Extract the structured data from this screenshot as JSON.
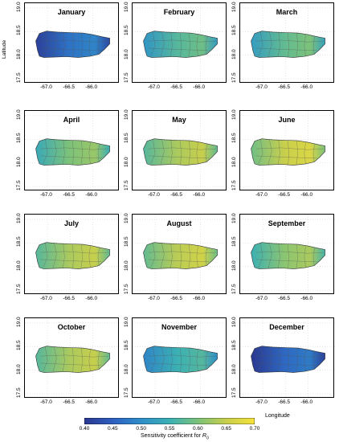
{
  "figure": {
    "months": [
      "January",
      "February",
      "March",
      "April",
      "May",
      "June",
      "July",
      "August",
      "September",
      "October",
      "November",
      "December"
    ],
    "month_means": [
      0.44,
      0.54,
      0.55,
      0.57,
      0.6,
      0.62,
      0.6,
      0.61,
      0.58,
      0.6,
      0.52,
      0.43
    ],
    "y_axis_label": "Latitude",
    "x_axis_label": "Longitude",
    "x_ticks": [
      "-67.0",
      "-66.5",
      "-66.0"
    ],
    "y_ticks": [
      "19.0",
      "18.5",
      "18.0",
      "17.5"
    ],
    "colorbar": {
      "label_prefix": "Sensitivity coefficient for ",
      "label_symbol": "R",
      "label_subscript": "0",
      "ticks": [
        "0.40",
        "0.45",
        "0.50",
        "0.55",
        "0.60",
        "0.65",
        "0.70"
      ],
      "min": 0.4,
      "max": 0.7,
      "colors": [
        "#2a3890",
        "#2e5fc0",
        "#2f8ec9",
        "#3bb0b4",
        "#7cc27a",
        "#c8cf4c",
        "#f5e13a"
      ]
    }
  }
}
